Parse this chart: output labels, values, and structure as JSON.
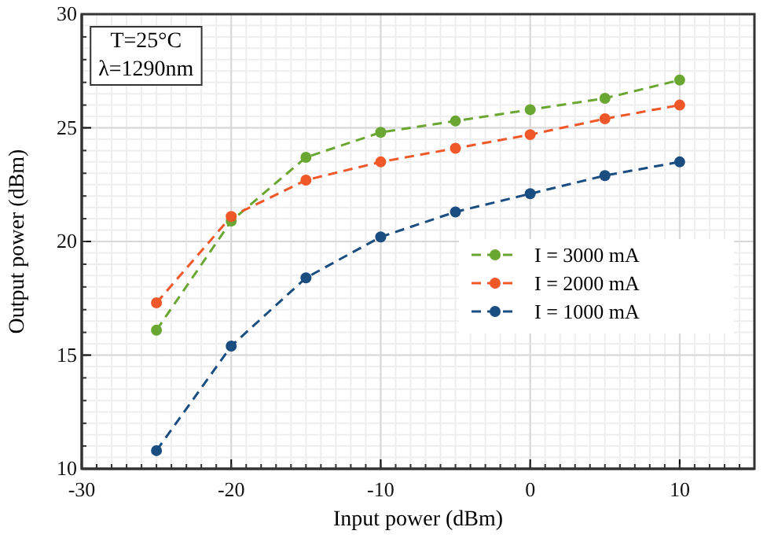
{
  "chart_data": {
    "type": "line",
    "xlabel": "Input power (dBm)",
    "ylabel": "Output power (dBm)",
    "x": [
      -25,
      -20,
      -15,
      -10,
      -5,
      0,
      5,
      10
    ],
    "series": [
      {
        "name": "I = 3000 mA",
        "color": "#6aa632",
        "values": [
          16.1,
          20.9,
          23.7,
          24.8,
          25.3,
          25.8,
          26.3,
          27.1
        ]
      },
      {
        "name": "I = 2000 mA",
        "color": "#f0582a",
        "values": [
          17.3,
          21.1,
          22.7,
          23.5,
          24.1,
          24.7,
          25.4,
          26.0
        ]
      },
      {
        "name": "I = 1000 mA",
        "color": "#1a4d80",
        "values": [
          10.8,
          15.4,
          18.4,
          20.2,
          21.3,
          22.1,
          22.9,
          23.5
        ]
      }
    ],
    "xlim": [
      -30,
      15
    ],
    "ylim": [
      10,
      30
    ],
    "xticks": [
      -30,
      -20,
      -10,
      0,
      10
    ],
    "yticks": [
      10,
      15,
      20,
      25,
      30
    ],
    "annotations": [
      "T=25°C",
      "λ=1290nm"
    ],
    "grid": true,
    "legend": "right",
    "marker": "circle",
    "line_style": "dashed"
  }
}
